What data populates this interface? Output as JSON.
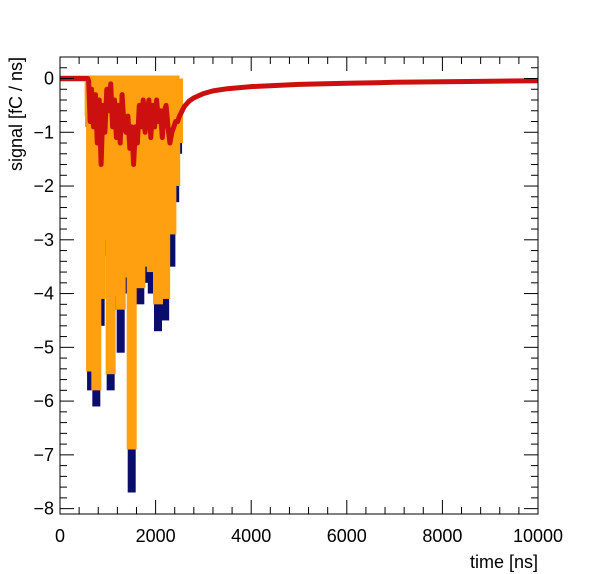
{
  "chart_data": {
    "type": "bar",
    "title": "",
    "xlabel": "time [ns]",
    "ylabel": "signal [fC / ns]",
    "xlim": [
      0,
      10000
    ],
    "ylim": [
      -8.1,
      0.4
    ],
    "x_ticks": [
      {
        "value": 0,
        "label": "0"
      },
      {
        "value": 2000,
        "label": "2000"
      },
      {
        "value": 4000,
        "label": "4000"
      },
      {
        "value": 6000,
        "label": "6000"
      },
      {
        "value": 8000,
        "label": "8000"
      },
      {
        "value": 10000,
        "label": "10000"
      }
    ],
    "y_ticks": [
      {
        "value": 0,
        "label": "0"
      },
      {
        "value": -1,
        "label": "−1"
      },
      {
        "value": -2,
        "label": "−2"
      },
      {
        "value": -3,
        "label": "−3"
      },
      {
        "value": -4,
        "label": "−4"
      },
      {
        "value": -5,
        "label": "−5"
      },
      {
        "value": -6,
        "label": "−6"
      },
      {
        "value": -7,
        "label": "−7"
      },
      {
        "value": -8,
        "label": "−8"
      }
    ],
    "colors": {
      "total": "#0a0d6b",
      "component": "#ffa010",
      "shaped": "#cc1010",
      "frame": "#000000"
    },
    "series": [
      {
        "values_kind": "spikes",
        "points": [
          {
            "x": 620,
            "total": -0.9,
            "component": -0.7
          },
          {
            "x": 650,
            "total": -5.8,
            "component": -5.45
          },
          {
            "x": 700,
            "total": -0.6,
            "component": -0.5
          },
          {
            "x": 760,
            "total": -6.1,
            "component": -5.8
          },
          {
            "x": 800,
            "total": -1.5,
            "component": -1.3
          },
          {
            "x": 850,
            "total": -4.6,
            "component": -4.1
          },
          {
            "x": 900,
            "total": -0.9,
            "component": -0.7
          },
          {
            "x": 960,
            "total": -3.3,
            "component": -3.0
          },
          {
            "x": 1010,
            "total": -1.6,
            "component": -1.4
          },
          {
            "x": 1060,
            "total": -5.8,
            "component": -5.5
          },
          {
            "x": 1120,
            "total": -0.8,
            "component": -0.6
          },
          {
            "x": 1170,
            "total": -4.3,
            "component": -4.05
          },
          {
            "x": 1220,
            "total": -3.7,
            "component": -3.4
          },
          {
            "x": 1270,
            "total": -5.1,
            "component": -4.3
          },
          {
            "x": 1320,
            "total": -1.8,
            "component": -1.6
          },
          {
            "x": 1380,
            "total": -4.0,
            "component": -3.7
          },
          {
            "x": 1440,
            "total": -2.6,
            "component": -2.4
          },
          {
            "x": 1500,
            "total": -7.7,
            "component": -6.9
          },
          {
            "x": 1570,
            "total": -1.3,
            "component": -1.1
          },
          {
            "x": 1620,
            "total": -3.5,
            "component": -3.2
          },
          {
            "x": 1680,
            "total": -4.2,
            "component": -3.9
          },
          {
            "x": 1740,
            "total": -2.9,
            "component": -2.6
          },
          {
            "x": 1800,
            "total": -3.8,
            "component": -3.5
          },
          {
            "x": 1860,
            "total": -2.5,
            "component": -2.3
          },
          {
            "x": 1920,
            "total": -4.0,
            "component": -3.6
          },
          {
            "x": 1980,
            "total": -1.4,
            "component": -1.2
          },
          {
            "x": 2050,
            "total": -4.7,
            "component": -4.2
          },
          {
            "x": 2120,
            "total": -2.6,
            "component": -2.3
          },
          {
            "x": 2200,
            "total": -4.5,
            "component": -4.1
          },
          {
            "x": 2270,
            "total": -0.8,
            "component": -0.6
          },
          {
            "x": 2330,
            "total": -3.5,
            "component": -2.9
          },
          {
            "x": 2410,
            "total": -2.3,
            "component": -2.0
          },
          {
            "x": 2470,
            "total": -1.4,
            "component": -1.2
          }
        ]
      },
      {
        "name": "",
        "values_kind": "line",
        "points": [
          [
            0,
            0
          ],
          [
            580,
            0
          ],
          [
            600,
            -0.05
          ],
          [
            630,
            -0.8
          ],
          [
            660,
            -0.2
          ],
          [
            700,
            -0.9
          ],
          [
            740,
            -0.3
          ],
          [
            780,
            -1.2
          ],
          [
            820,
            -0.4
          ],
          [
            860,
            -1.6
          ],
          [
            900,
            -0.5
          ],
          [
            940,
            -1.0
          ],
          [
            980,
            -0.2
          ],
          [
            1020,
            -0.6
          ],
          [
            1060,
            -0.1
          ],
          [
            1100,
            -0.9
          ],
          [
            1140,
            -0.4
          ],
          [
            1180,
            -1.1
          ],
          [
            1220,
            -0.5
          ],
          [
            1260,
            -1.2
          ],
          [
            1300,
            -0.3
          ],
          [
            1340,
            -0.9
          ],
          [
            1380,
            -1.0
          ],
          [
            1420,
            -0.7
          ],
          [
            1460,
            -1.3
          ],
          [
            1500,
            -0.9
          ],
          [
            1540,
            -1.6
          ],
          [
            1580,
            -0.9
          ],
          [
            1620,
            -1.2
          ],
          [
            1660,
            -0.5
          ],
          [
            1700,
            -0.9
          ],
          [
            1740,
            -0.4
          ],
          [
            1780,
            -1.0
          ],
          [
            1820,
            -0.6
          ],
          [
            1860,
            -0.4
          ],
          [
            1900,
            -1.1
          ],
          [
            1940,
            -0.5
          ],
          [
            1980,
            -0.9
          ],
          [
            2020,
            -0.4
          ],
          [
            2060,
            -0.8
          ],
          [
            2100,
            -0.6
          ],
          [
            2140,
            -1.1
          ],
          [
            2180,
            -0.6
          ],
          [
            2220,
            -0.5
          ],
          [
            2260,
            -0.9
          ],
          [
            2300,
            -1.2
          ],
          [
            2340,
            -1.0
          ],
          [
            2380,
            -0.9
          ],
          [
            2420,
            -0.8
          ],
          [
            2460,
            -0.8
          ],
          [
            2500,
            -0.7
          ],
          [
            2600,
            -0.52
          ],
          [
            2700,
            -0.42
          ],
          [
            2800,
            -0.36
          ],
          [
            3000,
            -0.28
          ],
          [
            3200,
            -0.23
          ],
          [
            3500,
            -0.19
          ],
          [
            4000,
            -0.15
          ],
          [
            5000,
            -0.11
          ],
          [
            6000,
            -0.09
          ],
          [
            7000,
            -0.07
          ],
          [
            8000,
            -0.06
          ],
          [
            9000,
            -0.05
          ],
          [
            10000,
            -0.04
          ]
        ]
      }
    ],
    "grid": false,
    "legend": "none"
  }
}
